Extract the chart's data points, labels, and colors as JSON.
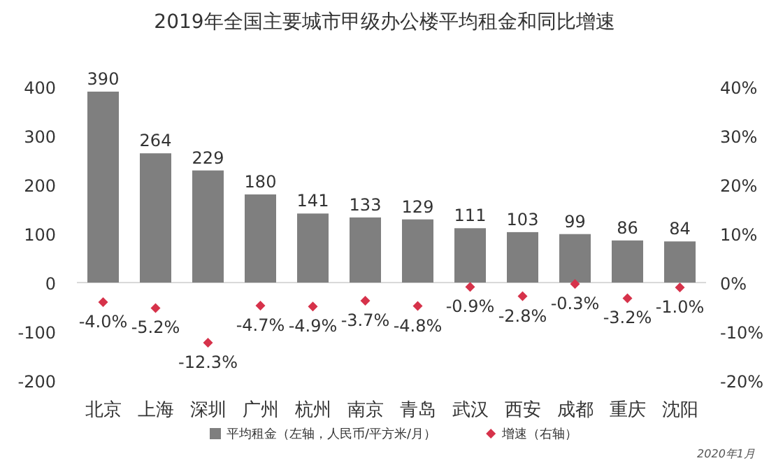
{
  "chart_data": {
    "type": "bar",
    "title": "2019年全国主要城市甲级办公楼平均租金和同比增速",
    "categories": [
      "北京",
      "上海",
      "深圳",
      "广州",
      "杭州",
      "南京",
      "青岛",
      "武汉",
      "西安",
      "成都",
      "重庆",
      "沈阳"
    ],
    "series": [
      {
        "name": "平均租金（左轴，人民币/平方米/月）",
        "color": "#7f7f7f",
        "values": [
          390,
          264,
          229,
          180,
          141,
          133,
          129,
          111,
          103,
          99,
          86,
          84
        ],
        "value_labels": [
          "390",
          "264",
          "229",
          "180",
          "141",
          "133",
          "129",
          "111",
          "103",
          "99",
          "86",
          "84"
        ]
      },
      {
        "name": "增速（右轴）",
        "type": "scatter",
        "axis": "y2",
        "color": "#d6324a",
        "values": [
          -4.0,
          -5.2,
          -12.3,
          -4.7,
          -4.9,
          -3.7,
          -4.8,
          -0.9,
          -2.8,
          -0.3,
          -3.2,
          -1.0
        ],
        "value_labels": [
          "-4.0%",
          "-5.2%",
          "-12.3%",
          "-4.7%",
          "-4.9%",
          "-3.7%",
          "-4.8%",
          "-0.9%",
          "-2.8%",
          "-0.3%",
          "-3.2%",
          "-1.0%"
        ]
      }
    ],
    "ylim": [
      -200,
      400
    ],
    "yticks": [
      -200,
      -100,
      0,
      100,
      200,
      300,
      400
    ],
    "y2lim": [
      -20,
      40
    ],
    "y2ticks": [
      {
        "value": -20,
        "label": "-20%"
      },
      {
        "value": -10,
        "label": "-10%"
      },
      {
        "value": 0,
        "label": "0%"
      },
      {
        "value": 10,
        "label": "10%"
      },
      {
        "value": 20,
        "label": "20%"
      },
      {
        "value": 30,
        "label": "30%"
      },
      {
        "value": 40,
        "label": "40%"
      }
    ],
    "marker": "diamond",
    "legend": "bottom",
    "annotations": [
      "2020年1月"
    ]
  }
}
